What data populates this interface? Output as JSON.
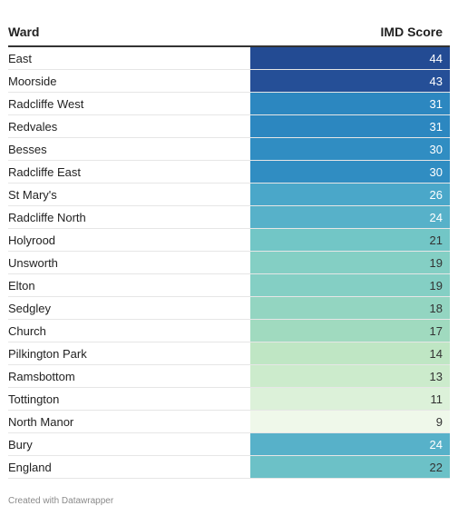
{
  "chart_data": {
    "type": "table",
    "columns": [
      "Ward",
      "IMD Score"
    ],
    "rows": [
      {
        "ward": "East",
        "score": 44,
        "bg": "#234b93",
        "fg": "#ffffff"
      },
      {
        "ward": "Moorside",
        "score": 43,
        "bg": "#254f97",
        "fg": "#ffffff"
      },
      {
        "ward": "Radcliffe West",
        "score": 31,
        "bg": "#2c87c0",
        "fg": "#ffffff"
      },
      {
        "ward": "Redvales",
        "score": 31,
        "bg": "#2c87c0",
        "fg": "#ffffff"
      },
      {
        "ward": "Besses",
        "score": 30,
        "bg": "#308dc2",
        "fg": "#ffffff"
      },
      {
        "ward": "Radcliffe East",
        "score": 30,
        "bg": "#308dc2",
        "fg": "#ffffff"
      },
      {
        "ward": "St Mary's",
        "score": 26,
        "bg": "#4aa7c9",
        "fg": "#ffffff"
      },
      {
        "ward": "Radcliffe North",
        "score": 24,
        "bg": "#57b1c9",
        "fg": "#ffffff"
      },
      {
        "ward": "Holyrood",
        "score": 21,
        "bg": "#72c6c6",
        "fg": "#333333"
      },
      {
        "ward": "Unsworth",
        "score": 19,
        "bg": "#84cfc4",
        "fg": "#333333"
      },
      {
        "ward": "Elton",
        "score": 19,
        "bg": "#84cfc4",
        "fg": "#333333"
      },
      {
        "ward": "Sedgley",
        "score": 18,
        "bg": "#93d5c1",
        "fg": "#333333"
      },
      {
        "ward": "Church",
        "score": 17,
        "bg": "#a0dabf",
        "fg": "#333333"
      },
      {
        "ward": "Pilkington Park",
        "score": 14,
        "bg": "#bfe6c4",
        "fg": "#333333"
      },
      {
        "ward": "Ramsbottom",
        "score": 13,
        "bg": "#ccebcc",
        "fg": "#333333"
      },
      {
        "ward": "Tottington",
        "score": 11,
        "bg": "#dcf1d9",
        "fg": "#333333"
      },
      {
        "ward": "North Manor",
        "score": 9,
        "bg": "#eff8ea",
        "fg": "#333333"
      },
      {
        "ward": "Bury",
        "score": 24,
        "bg": "#57b1c9",
        "fg": "#ffffff"
      },
      {
        "ward": "England",
        "score": 22,
        "bg": "#6cc1c7",
        "fg": "#333333"
      }
    ]
  },
  "footer": "Created with Datawrapper"
}
